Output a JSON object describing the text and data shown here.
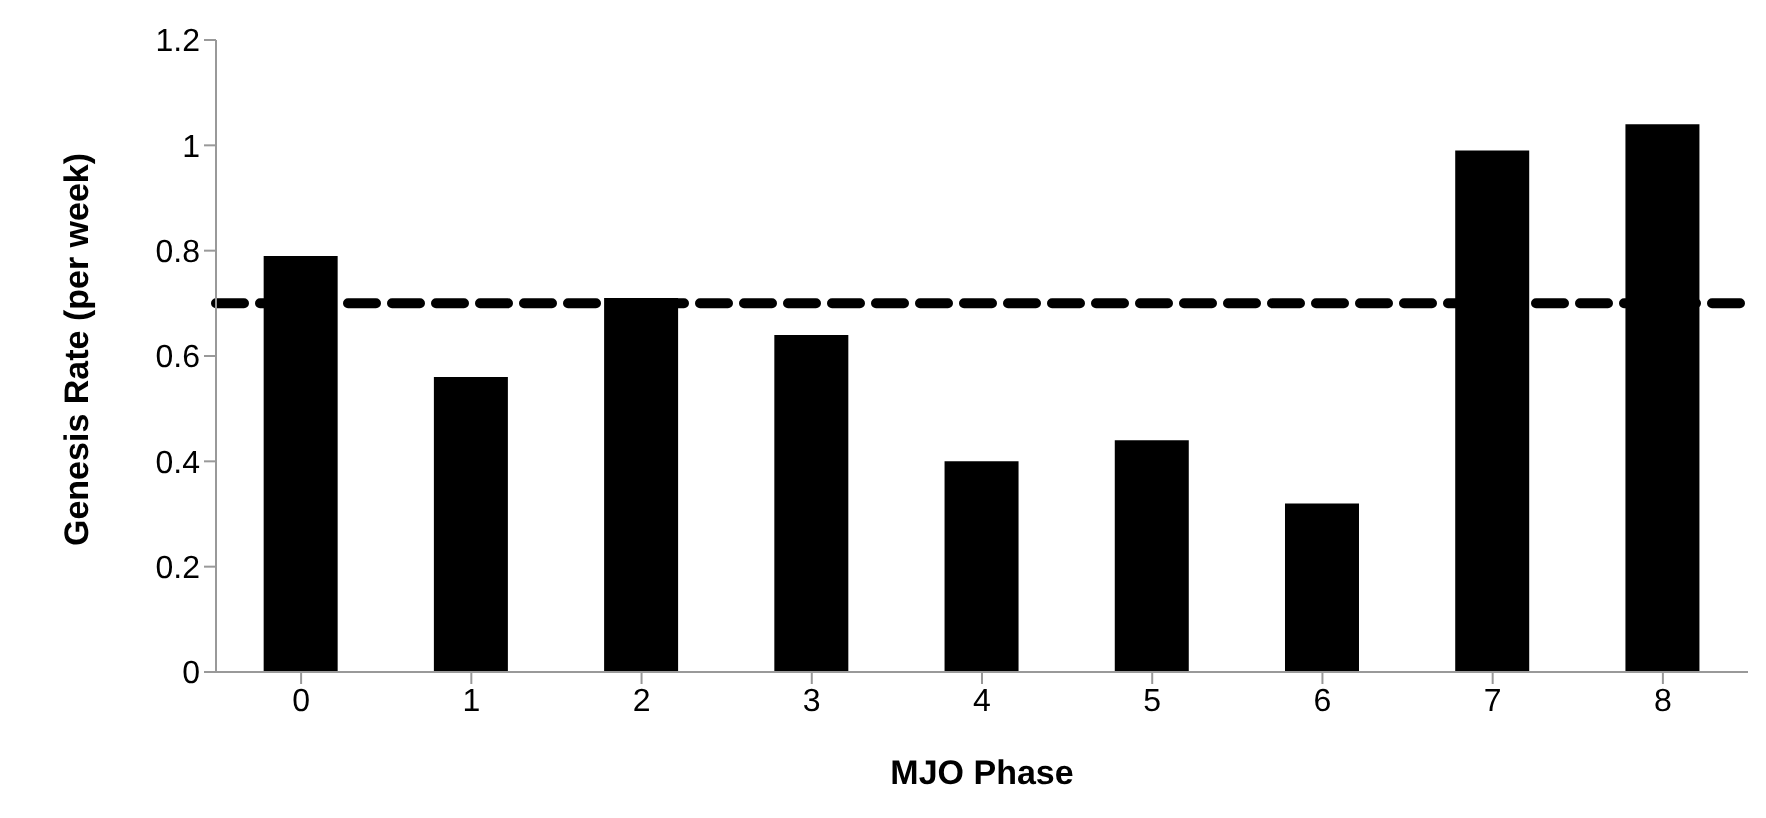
{
  "chart_data": {
    "type": "bar",
    "xlabel": "MJO Phase",
    "ylabel": "Genesis Rate (per week)",
    "categories": [
      "0",
      "1",
      "2",
      "3",
      "4",
      "5",
      "6",
      "7",
      "8"
    ],
    "series": [
      {
        "color": "#000000",
        "values": [
          0.79,
          0.56,
          0.71,
          0.64,
          0.4,
          0.44,
          0.32,
          0.99,
          1.04
        ]
      }
    ],
    "ylim": [
      0,
      1.2
    ],
    "yticks": [
      0,
      0.2,
      0.4,
      0.6,
      0.8,
      1,
      1.2
    ],
    "grid": false,
    "legend": false,
    "ref_lines": [
      {
        "axis": "y",
        "value": 0.7,
        "color": "#000000",
        "line_style": "dashed"
      }
    ]
  }
}
